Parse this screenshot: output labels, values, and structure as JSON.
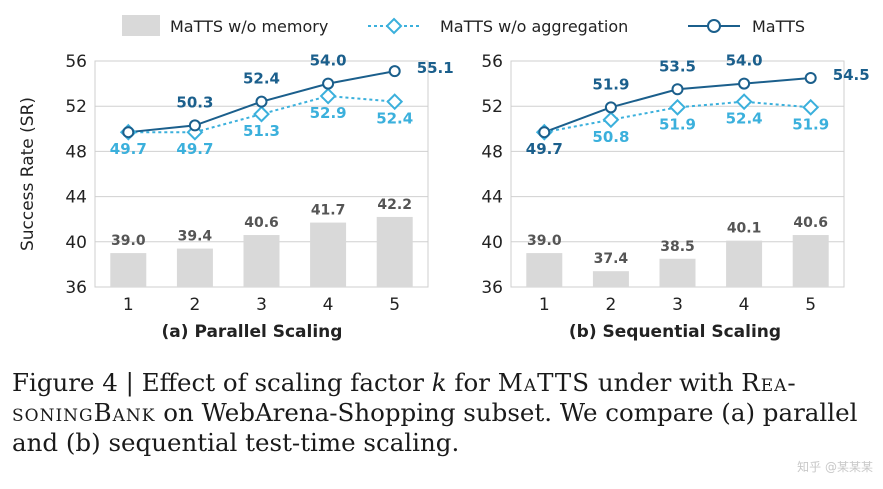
{
  "legend": [
    {
      "key": "mem",
      "label": "MaTTS w/o memory"
    },
    {
      "key": "agg",
      "label": "MaTTS w/o aggregation"
    },
    {
      "key": "matts",
      "label": "MaTTS"
    }
  ],
  "colors": {
    "bar": "#d9d9d9",
    "agg": "#3bb0dc",
    "matts": "#1b5f8c",
    "label_dark": "#555555"
  },
  "chart_data": [
    {
      "type": "bar+line",
      "title": "(a) Parallel Scaling",
      "ylabel": "Success Rate (SR)",
      "xlabel": "",
      "ylim": [
        36,
        56
      ],
      "yticks": [
        "36",
        "40",
        "44",
        "48",
        "52",
        "56"
      ],
      "categories": [
        "1",
        "2",
        "3",
        "4",
        "5"
      ],
      "series": [
        {
          "name": "MaTTS w/o memory",
          "kind": "bar",
          "values": [
            39.0,
            39.4,
            40.6,
            41.7,
            42.2
          ],
          "labels": [
            "39.0",
            "39.4",
            "40.6",
            "41.7",
            "42.2"
          ]
        },
        {
          "name": "MaTTS w/o aggregation",
          "kind": "line-dashed-diamond",
          "values": [
            49.7,
            49.7,
            51.3,
            52.9,
            52.4
          ],
          "labels": [
            "49.7",
            "49.7",
            "51.3",
            "52.9",
            "52.4"
          ]
        },
        {
          "name": "MaTTS",
          "kind": "line-circle",
          "values": [
            49.7,
            50.3,
            52.4,
            54.0,
            55.1
          ],
          "labels": [
            "",
            "50.3",
            "52.4",
            "54.0",
            "55.1"
          ]
        }
      ]
    },
    {
      "type": "bar+line",
      "title": "(b) Sequential Scaling",
      "ylabel": "",
      "xlabel": "",
      "ylim": [
        36,
        56
      ],
      "yticks": [
        "36",
        "40",
        "44",
        "48",
        "52",
        "56"
      ],
      "categories": [
        "1",
        "2",
        "3",
        "4",
        "5"
      ],
      "series": [
        {
          "name": "MaTTS w/o memory",
          "kind": "bar",
          "values": [
            39.0,
            37.4,
            38.5,
            40.1,
            40.6
          ],
          "labels": [
            "39.0",
            "37.4",
            "38.5",
            "40.1",
            "40.6"
          ]
        },
        {
          "name": "MaTTS w/o aggregation",
          "kind": "line-dashed-diamond",
          "values": [
            49.7,
            50.8,
            51.9,
            52.4,
            51.9
          ],
          "labels": [
            "",
            "50.8",
            "51.9",
            "52.4",
            "51.9"
          ]
        },
        {
          "name": "MaTTS",
          "kind": "line-circle",
          "values": [
            49.7,
            51.9,
            53.5,
            54.0,
            54.5
          ],
          "labels": [
            "49.7",
            "51.9",
            "53.5",
            "54.0",
            "54.5"
          ]
        }
      ]
    }
  ],
  "caption": {
    "prefix": "Figure 4 | Effect of scaling factor ",
    "k": "k",
    "mid": " for ",
    "matts": "MaTTS",
    "mid2": " under with ",
    "rb1": "Rea-",
    "rb2": "soningBank",
    "rest": " on WebArena-Shopping subset. We compare (a) parallel and (b) sequential test-time scaling."
  },
  "watermark": "知乎 @某某某"
}
